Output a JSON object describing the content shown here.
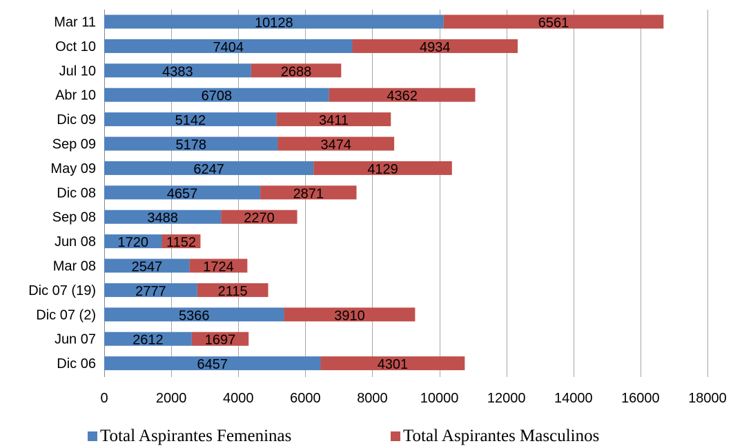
{
  "chart_data": {
    "type": "bar",
    "orientation": "horizontal",
    "stacked": true,
    "title": "",
    "xlabel": "",
    "ylabel": "",
    "categories": [
      "Mar 11",
      "Oct 10",
      "Jul 10",
      "Abr 10",
      "Dic 09",
      "Sep 09",
      "May 09",
      "Dic 08",
      "Sep 08",
      "Jun 08",
      "Mar 08",
      "Dic 07 (19)",
      "Dic 07 (2)",
      "Jun 07",
      "Dic 06"
    ],
    "series": [
      {
        "name": "Total Aspirantes Femeninas",
        "color": "#4F81BD",
        "values": [
          10128,
          7404,
          4383,
          6708,
          5142,
          5178,
          6247,
          4657,
          3488,
          1720,
          2547,
          2777,
          5366,
          2612,
          6457
        ]
      },
      {
        "name": "Total Aspirantes Masculinos",
        "color": "#C0504D",
        "values": [
          6561,
          4934,
          2688,
          4362,
          3411,
          3474,
          4129,
          2871,
          2270,
          1152,
          1724,
          2115,
          3910,
          1697,
          4301
        ]
      }
    ],
    "xlim": [
      0,
      18000
    ],
    "xticks": [
      0,
      2000,
      4000,
      6000,
      8000,
      10000,
      12000,
      14000,
      16000,
      18000
    ],
    "grid": true,
    "data_labels": true,
    "legend_position": "bottom"
  }
}
